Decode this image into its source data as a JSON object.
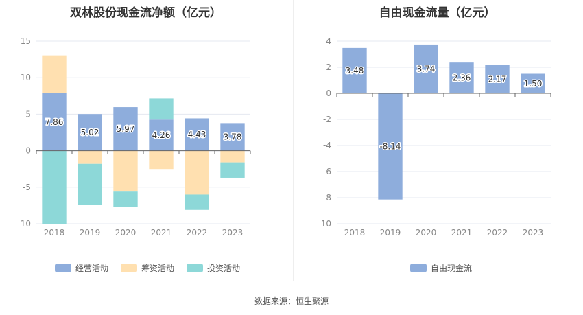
{
  "colors": {
    "operating": "#8eaddc",
    "financing": "#ffe0b0",
    "investing": "#8dd8d8",
    "free_cash_flow": "#8eaddc",
    "grid": "#e5e8f0",
    "axis_text": "#888888"
  },
  "chart_data": [
    {
      "type": "bar",
      "title": "双林股份现金流净额（亿元）",
      "categories": [
        "2018",
        "2019",
        "2020",
        "2021",
        "2022",
        "2023"
      ],
      "ylim": [
        -10,
        15
      ],
      "yticks": [
        -10,
        -5,
        0,
        5,
        10,
        15
      ],
      "grid": true,
      "legend_position": "bottom",
      "series": [
        {
          "name": "经营活动",
          "values": [
            7.86,
            5.02,
            5.97,
            4.26,
            4.43,
            3.78
          ],
          "labels": [
            "7.86",
            "5.02",
            "5.97",
            "4.26",
            "4.43",
            "3.78"
          ]
        },
        {
          "name": "筹资活动",
          "values": [
            5.2,
            -1.8,
            -5.6,
            -2.5,
            -6.0,
            -1.6
          ]
        },
        {
          "name": "投资活动",
          "values": [
            -10.0,
            -5.6,
            -2.1,
            2.9,
            -2.1,
            -2.1
          ]
        }
      ]
    },
    {
      "type": "bar",
      "title": "自由现金流量（亿元）",
      "categories": [
        "2018",
        "2019",
        "2020",
        "2021",
        "2022",
        "2023"
      ],
      "ylim": [
        -10,
        4
      ],
      "yticks": [
        -10,
        -8,
        -6,
        -4,
        -2,
        0,
        2,
        4
      ],
      "grid": true,
      "legend_position": "bottom",
      "series": [
        {
          "name": "自由现金流",
          "values": [
            3.48,
            -8.14,
            3.74,
            2.36,
            2.17,
            1.5
          ],
          "labels": [
            "3.48",
            "-8.14",
            "3.74",
            "2.36",
            "2.17",
            "1.50"
          ]
        }
      ]
    }
  ],
  "legend_left": [
    "经营活动",
    "筹资活动",
    "投资活动"
  ],
  "legend_right": [
    "自由现金流"
  ],
  "source": "数据来源：恒生聚源"
}
